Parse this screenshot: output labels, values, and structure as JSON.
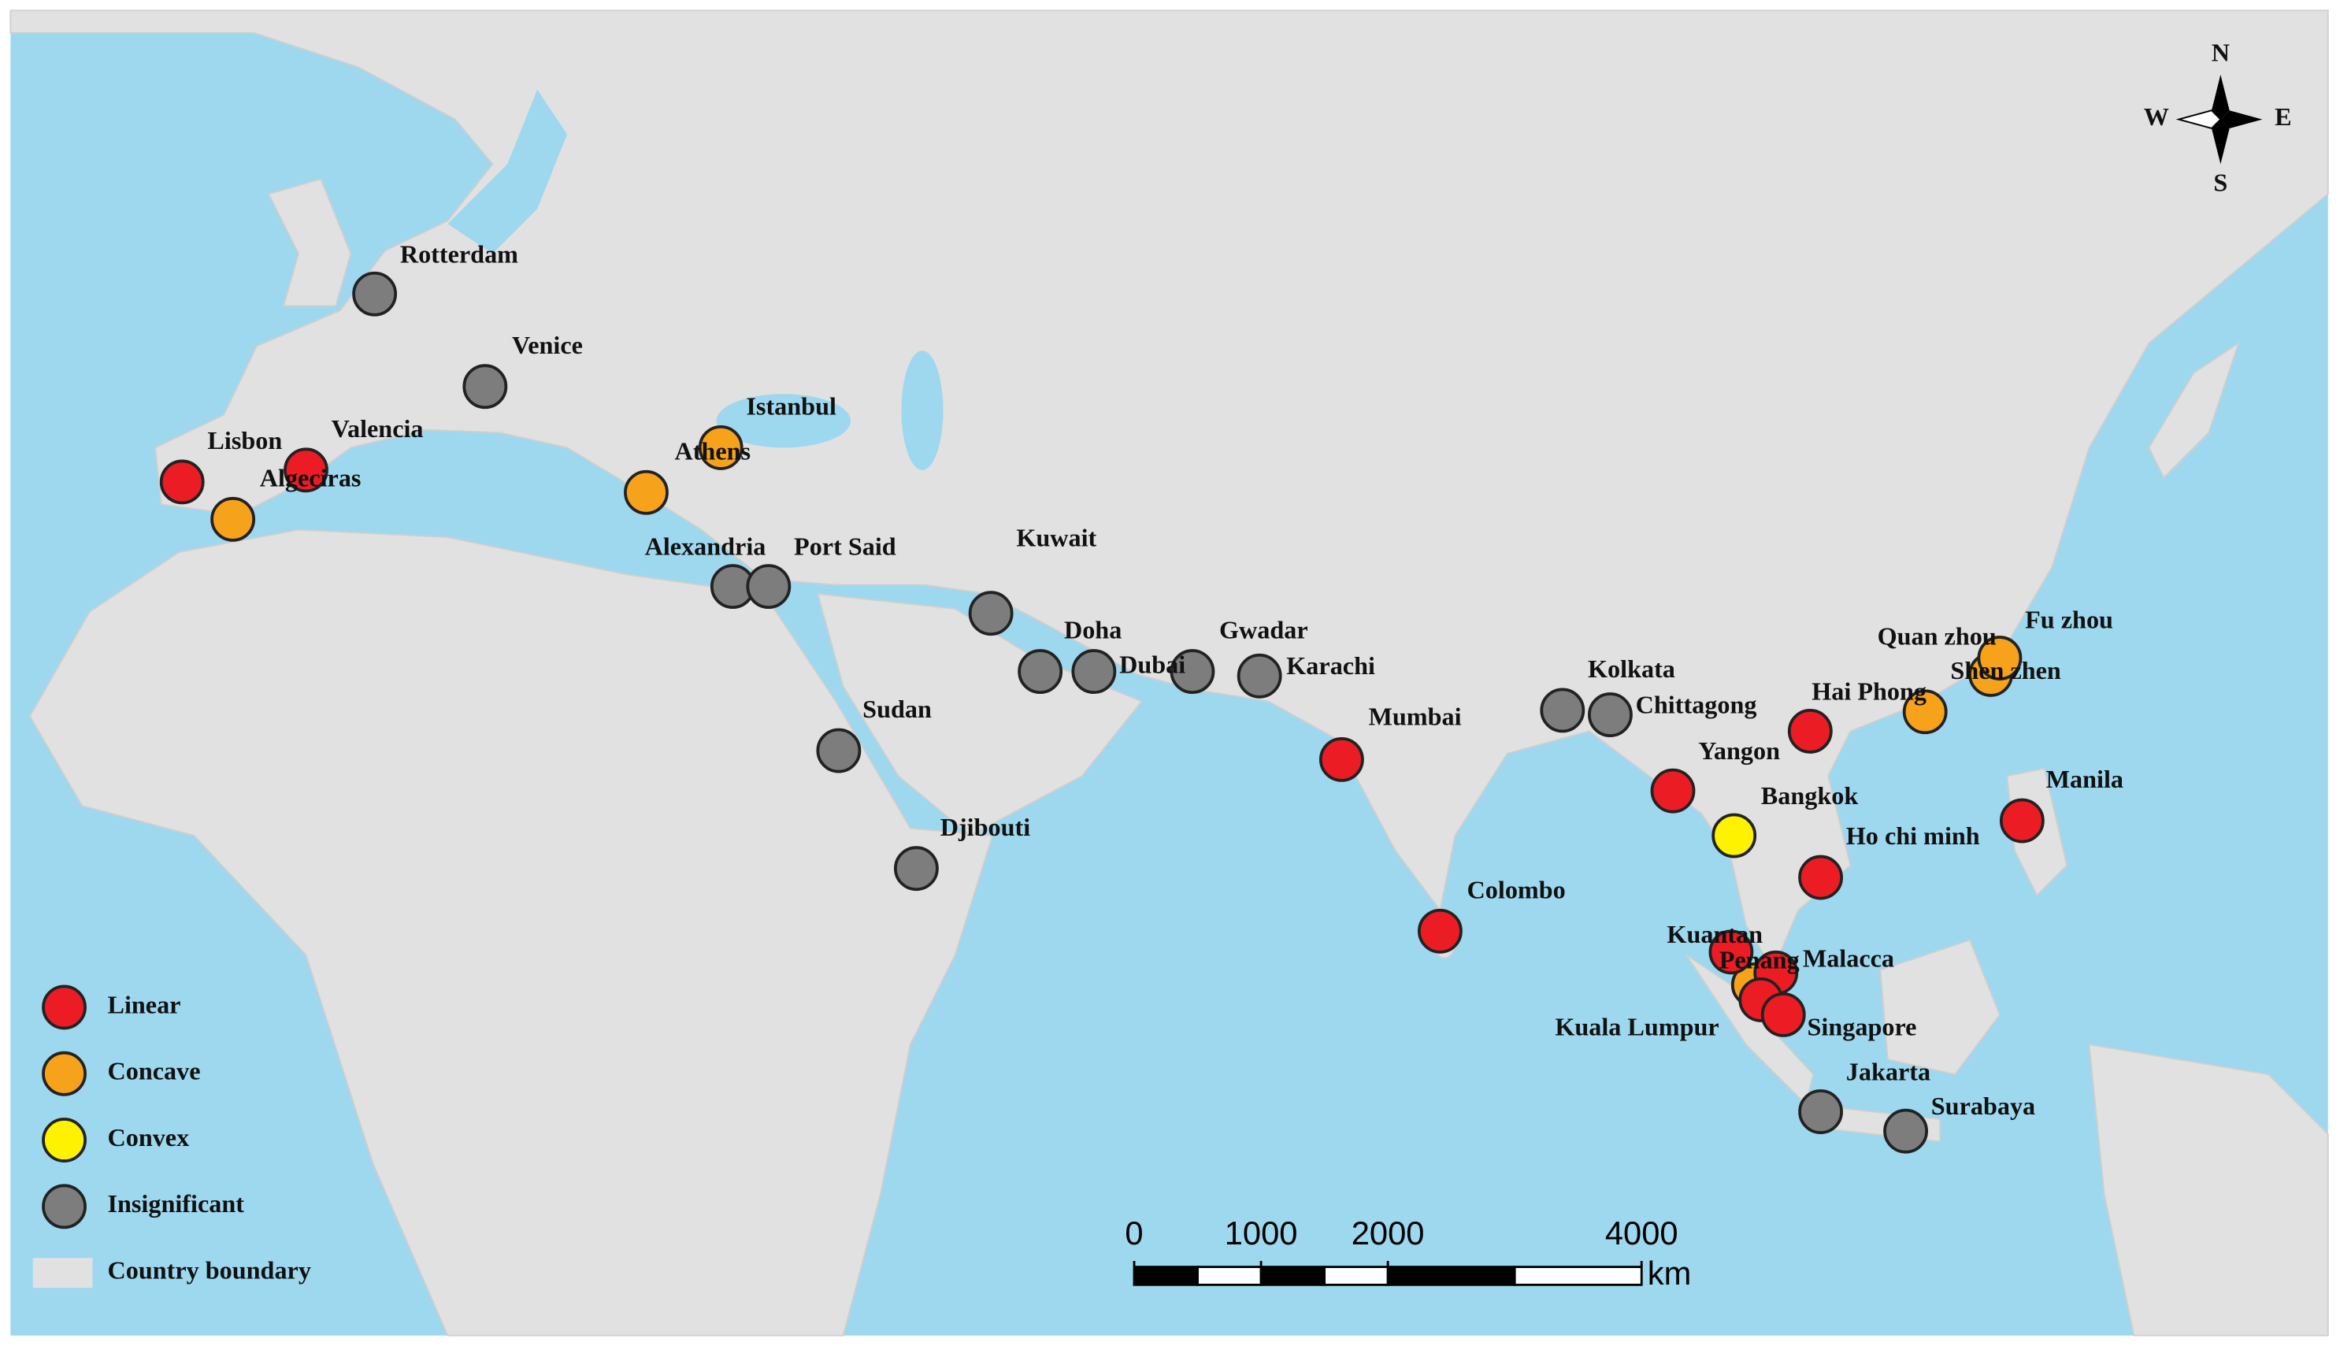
{
  "map": {
    "ports": [
      {
        "name": "Rotterdam",
        "class": "Insignificant"
      },
      {
        "name": "Venice",
        "class": "Insignificant"
      },
      {
        "name": "Istanbul",
        "class": "Concave"
      },
      {
        "name": "Athens",
        "class": "Concave"
      },
      {
        "name": "Lisbon",
        "class": "Linear"
      },
      {
        "name": "Valencia",
        "class": "Linear"
      },
      {
        "name": "Algeciras",
        "class": "Concave"
      },
      {
        "name": "Alexandria",
        "class": "Insignificant"
      },
      {
        "name": "Port Said",
        "class": "Insignificant"
      },
      {
        "name": "Kuwait",
        "class": "Insignificant"
      },
      {
        "name": "Doha",
        "class": "Insignificant"
      },
      {
        "name": "Dubai",
        "class": "Insignificant"
      },
      {
        "name": "Gwadar",
        "class": "Insignificant"
      },
      {
        "name": "Karachi",
        "class": "Insignificant"
      },
      {
        "name": "Sudan",
        "class": "Insignificant"
      },
      {
        "name": "Djibouti",
        "class": "Insignificant"
      },
      {
        "name": "Mumbai",
        "class": "Linear"
      },
      {
        "name": "Colombo",
        "class": "Linear"
      },
      {
        "name": "Kolkata",
        "class": "Insignificant"
      },
      {
        "name": "Chittagong",
        "class": "Insignificant"
      },
      {
        "name": "Yangon",
        "class": "Linear"
      },
      {
        "name": "Bangkok",
        "class": "Convex"
      },
      {
        "name": "Hai Phong",
        "class": "Linear"
      },
      {
        "name": "Ho chi minh",
        "class": "Linear"
      },
      {
        "name": "Quan zhou",
        "class": "Concave"
      },
      {
        "name": "Shen zhen",
        "class": "Concave"
      },
      {
        "name": "Fu zhou",
        "class": "Concave"
      },
      {
        "name": "Manila",
        "class": "Linear"
      },
      {
        "name": "Penang",
        "class": "Concave"
      },
      {
        "name": "Kuantan",
        "class": "Linear"
      },
      {
        "name": "Malacca",
        "class": "Linear"
      },
      {
        "name": "Kuala Lumpur",
        "class": "Linear"
      },
      {
        "name": "Singapore",
        "class": "Linear"
      },
      {
        "name": "Jakarta",
        "class": "Insignificant"
      },
      {
        "name": "Surabaya",
        "class": "Insignificant"
      }
    ],
    "legend": [
      {
        "label": "Linear",
        "color": "#ec1c24"
      },
      {
        "label": "Concave",
        "color": "#f7a21b"
      },
      {
        "label": "Convex",
        "color": "#fef200"
      },
      {
        "label": "Insignificant",
        "color": "#7d7d7d"
      },
      {
        "label": "Country boundary",
        "color": "#e1e1e1"
      }
    ],
    "scale_bar": {
      "ticks": [
        0,
        1000,
        2000,
        4000
      ],
      "unit": "km"
    },
    "compass": {
      "n": "N",
      "e": "E",
      "s": "S",
      "w": "W"
    }
  }
}
